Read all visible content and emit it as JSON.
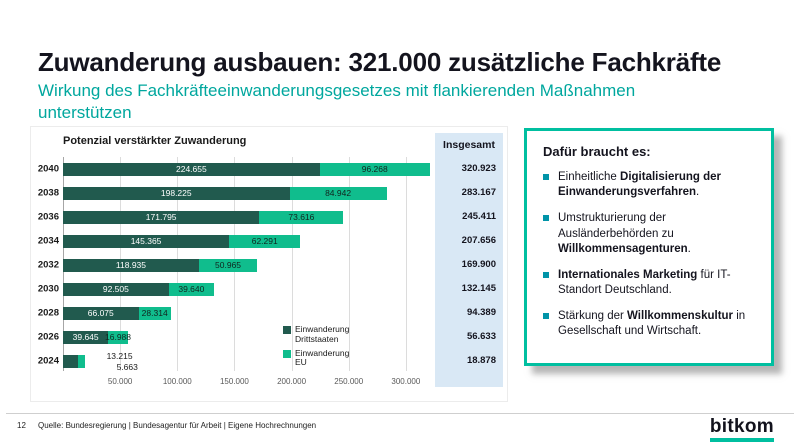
{
  "slide": {
    "title": "Zuwanderung ausbauen: 321.000 zusätzliche Fachkräfte",
    "subtitle": "Wirkung des Fachkräfteeinwanderungsgesetzes mit flankierenden Maßnahmen unterstützen",
    "page_number": "12",
    "source": "Quelle: Bundesregierung | Bundesagentur für Arbeit | Eigene Hochrechnungen",
    "logo_text": "bitkom"
  },
  "colors": {
    "accent_teal": "#00a79e",
    "callout_border_mint": "#00bfa0",
    "totals_background": "#d9e8f5",
    "bar_dark_green": "#215a4e",
    "bar_teal": "#10bd8d",
    "bullet_square": "#0094a8"
  },
  "chart_data": {
    "type": "bar",
    "orientation": "horizontal",
    "stacked": true,
    "title": "Potenzial verstärkter Zuwanderung",
    "categories": [
      "2040",
      "2038",
      "2036",
      "2034",
      "2032",
      "2030",
      "2028",
      "2026",
      "2024"
    ],
    "series": [
      {
        "name": "Einwanderung Drittstaaten",
        "color": "#215a4e",
        "values": [
          224655,
          198225,
          171795,
          145365,
          118935,
          92505,
          66075,
          39645,
          13215
        ],
        "labels": [
          "224.655",
          "198.225",
          "171.795",
          "145.365",
          "118.935",
          "92.505",
          "66.075",
          "39.645",
          "13.215"
        ]
      },
      {
        "name": "Einwanderung EU",
        "color": "#10bd8d",
        "values": [
          96268,
          84942,
          73616,
          62291,
          50965,
          39640,
          28314,
          16988,
          5663
        ],
        "labels": [
          "96.268",
          "84.942",
          "73.616",
          "62.291",
          "50.965",
          "39.640",
          "28.314",
          "16.988",
          "5.663"
        ]
      }
    ],
    "totals_header": "Insgesamt",
    "totals": [
      "320.923",
      "283.167",
      "245.411",
      "207.656",
      "169.900",
      "132.145",
      "94.389",
      "56.633",
      "18.878"
    ],
    "x_ticks": [
      {
        "value": 50000,
        "label": "50.000"
      },
      {
        "value": 100000,
        "label": "100.000"
      },
      {
        "value": 150000,
        "label": "150.000"
      },
      {
        "value": 200000,
        "label": "200.000"
      },
      {
        "value": 250000,
        "label": "250.000"
      },
      {
        "value": 300000,
        "label": "300.000"
      }
    ],
    "xlim": [
      0,
      322000
    ],
    "grid": true,
    "legend_position": "inside-bottom-right"
  },
  "callout": {
    "heading": "Dafür braucht es:",
    "bullets": [
      {
        "pre": "Einheitliche ",
        "bold": "Digitalisierung der Einwanderungsverfahren",
        "post": "."
      },
      {
        "pre": "Umstrukturierung der Ausländerbehörden zu ",
        "bold": "Willkommensagenturen",
        "post": "."
      },
      {
        "pre": "",
        "bold": "Internationales Marketing",
        "post": " für IT-Standort Deutschland."
      },
      {
        "pre": "Stärkung der ",
        "bold": "Willkommenskultur",
        "post": " in Gesellschaft und Wirtschaft."
      }
    ]
  }
}
